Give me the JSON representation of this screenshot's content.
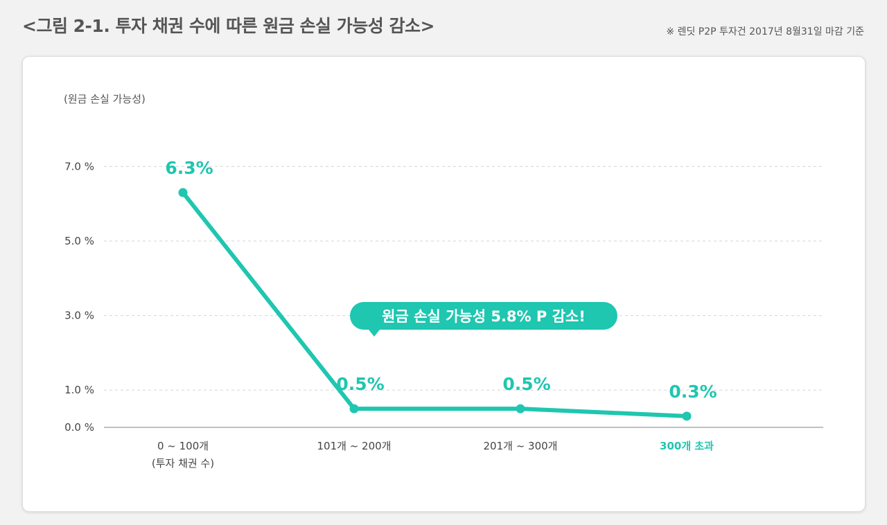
{
  "header": {
    "title": "<그림 2-1. 투자 채권 수에 따른 원금 손실 가능성 감소>",
    "note": "※ 렌딧 P2P 투자건 2017년 8월31일 마감 기준"
  },
  "colors": {
    "accent": "#1fc6b0",
    "grid": "#d5d5d5",
    "axis": "#9a9a9a",
    "text": "#444444"
  },
  "chart_data": {
    "type": "line",
    "title": "투자 채권 수에 따른 원금 손실 가능성 감소",
    "ylabel": "(원금 손실 가능성)",
    "ylim": [
      0,
      8
    ],
    "yticks": [
      {
        "value": 0,
        "label": "0.0 %"
      },
      {
        "value": 1,
        "label": "1.0 %"
      },
      {
        "value": 3,
        "label": "3.0 %"
      },
      {
        "value": 5,
        "label": "5.0 %"
      },
      {
        "value": 7,
        "label": "7.0 %"
      }
    ],
    "grid": true,
    "categories": [
      {
        "label": "0 ~ 100개",
        "sub": "(투자 채권 수)",
        "highlight": false
      },
      {
        "label": "101개 ~ 200개",
        "sub": "",
        "highlight": false
      },
      {
        "label": "201개 ~ 300개",
        "sub": "",
        "highlight": false
      },
      {
        "label": "300개 초과",
        "sub": "",
        "highlight": true
      }
    ],
    "series": [
      {
        "name": "원금 손실 가능성",
        "values": [
          6.3,
          0.5,
          0.5,
          0.3
        ],
        "labels": [
          "6.3%",
          "0.5%",
          "0.5%",
          "0.3%"
        ]
      }
    ],
    "annotation": {
      "text": "원금 손실 가능성 5.8% P 감소!",
      "category_index": 1
    }
  }
}
